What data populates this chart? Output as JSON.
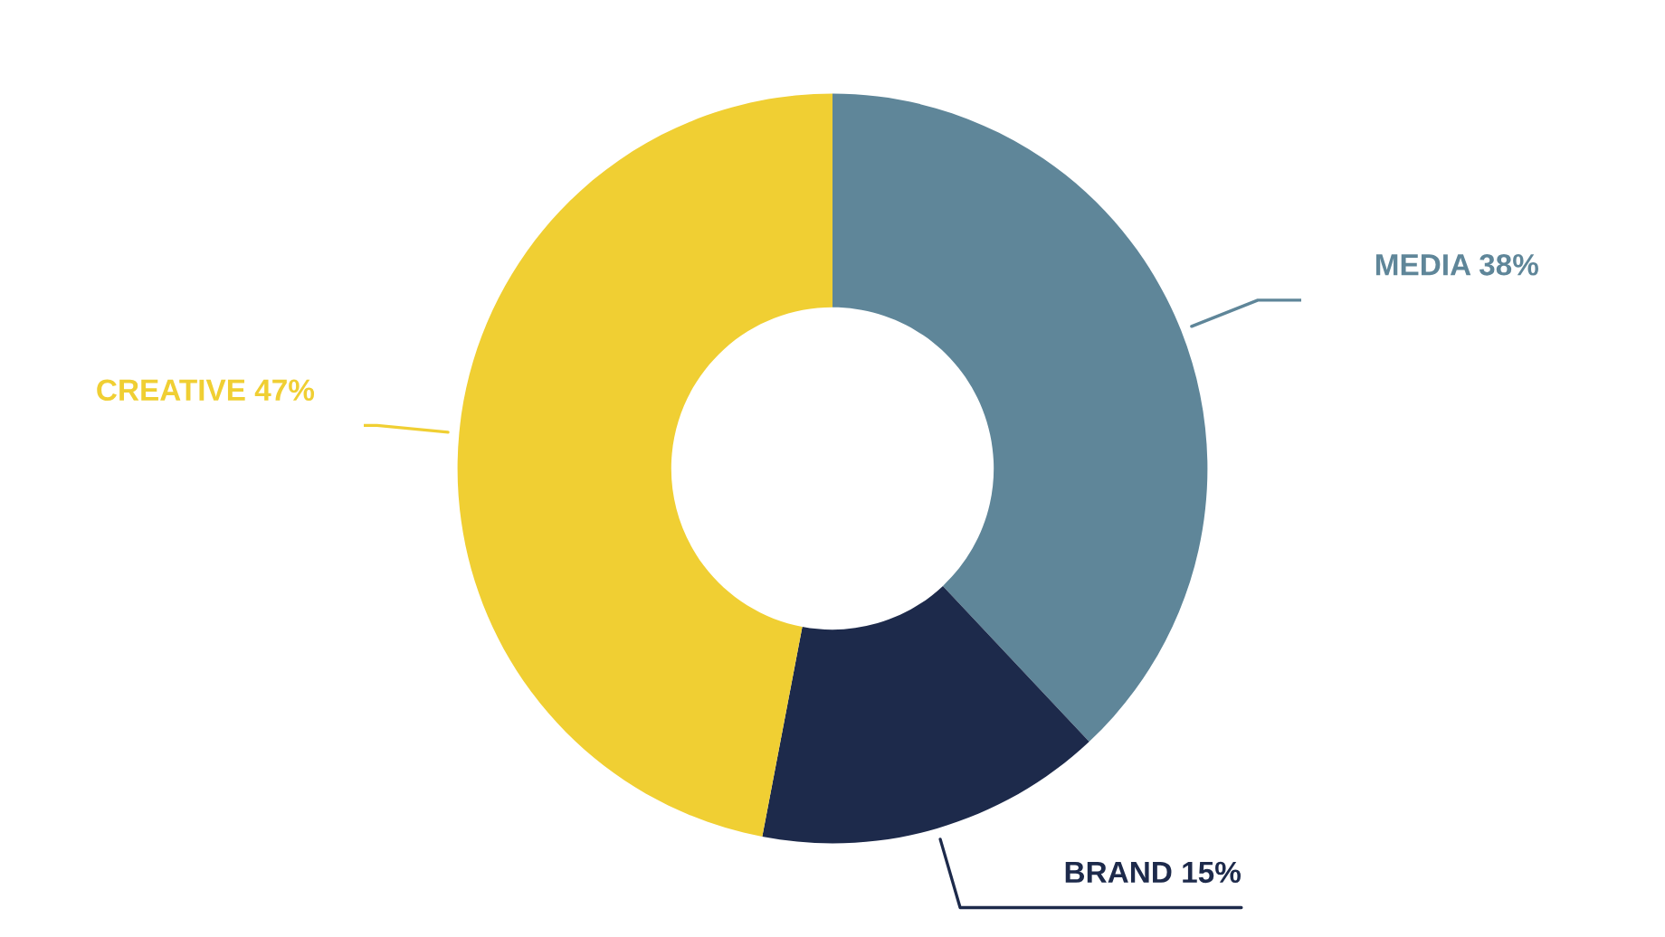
{
  "chart_data": {
    "type": "donut",
    "categories": [
      "MEDIA",
      "BRAND",
      "CREATIVE"
    ],
    "values": [
      38,
      15,
      47
    ],
    "value_labels": [
      "38%",
      "15%",
      "47%"
    ],
    "colors": [
      "#5f8699",
      "#1d2a4b",
      "#f0cf33"
    ]
  }
}
